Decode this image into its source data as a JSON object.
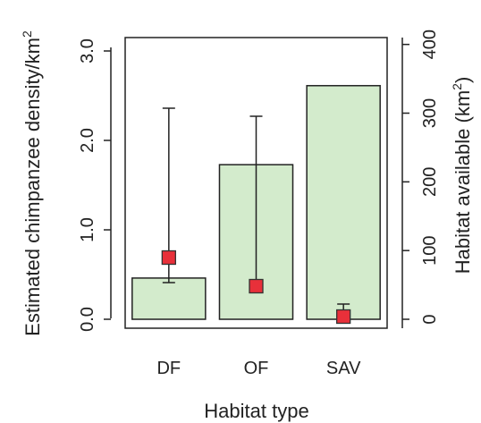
{
  "chart_data": {
    "type": "bar",
    "title": "",
    "categories": [
      "DF",
      "OF",
      "SAV"
    ],
    "xlabel": "Habitat type",
    "ylabel_left": {
      "main": "Estimated chimpanzee density/km",
      "sup": "2"
    },
    "ylabel_right": {
      "main": "Habitat available (km",
      "sup": "2",
      "end": ")"
    },
    "left_axis": {
      "ylim": [
        -0.1,
        3.15
      ],
      "ticks": [
        0.0,
        1.0,
        2.0,
        3.0
      ],
      "tick_labels": [
        "0.0",
        "1.0",
        "2.0",
        "3.0"
      ]
    },
    "right_axis": {
      "ylim": [
        -13,
        410
      ],
      "ticks": [
        0,
        100,
        200,
        300,
        400
      ],
      "tick_labels": [
        "0",
        "100",
        "200",
        "300",
        "400"
      ]
    },
    "bars": {
      "axis": "right",
      "name": "",
      "values": [
        60,
        225,
        340
      ],
      "fill": "#d3ebcc",
      "stroke": "#222222"
    },
    "points": {
      "axis": "left",
      "name": "",
      "values": [
        0.69,
        0.37,
        0.03
      ],
      "error_low": [
        0.41,
        0.37,
        0.0
      ],
      "error_high": [
        2.36,
        2.27,
        0.17
      ],
      "marker": "square",
      "fill": "#e8303a",
      "stroke": "#333333"
    },
    "grid": false,
    "legend": "none"
  }
}
